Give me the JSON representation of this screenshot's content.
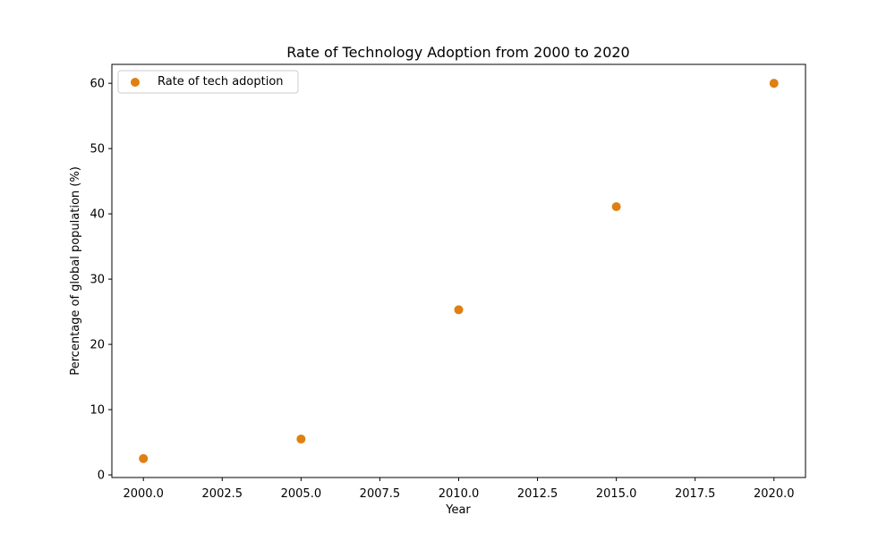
{
  "chart_data": {
    "type": "scatter",
    "title": "Rate of Technology Adoption from 2000 to 2020",
    "xlabel": "Year",
    "ylabel": "Percentage of global population (%)",
    "xlim": [
      1999.0,
      2021.0
    ],
    "ylim": [
      -0.4,
      62.9
    ],
    "xticks": [
      2000.0,
      2002.5,
      2005.0,
      2007.5,
      2010.0,
      2012.5,
      2015.0,
      2017.5,
      2020.0
    ],
    "xtick_labels": [
      "2000.0",
      "2002.5",
      "2005.0",
      "2007.5",
      "2010.0",
      "2012.5",
      "2015.0",
      "2017.5",
      "2020.0"
    ],
    "yticks": [
      0,
      10,
      20,
      30,
      40,
      50,
      60
    ],
    "ytick_labels": [
      "0",
      "10",
      "20",
      "30",
      "40",
      "50",
      "60"
    ],
    "grid": false,
    "legend_position": "top-left",
    "series": [
      {
        "name": "Rate of tech adoption",
        "color": "#e07f12",
        "x": [
          2000,
          2005,
          2010,
          2015,
          2020
        ],
        "y": [
          2.5,
          5.5,
          25.3,
          41.1,
          60.0
        ]
      }
    ]
  }
}
